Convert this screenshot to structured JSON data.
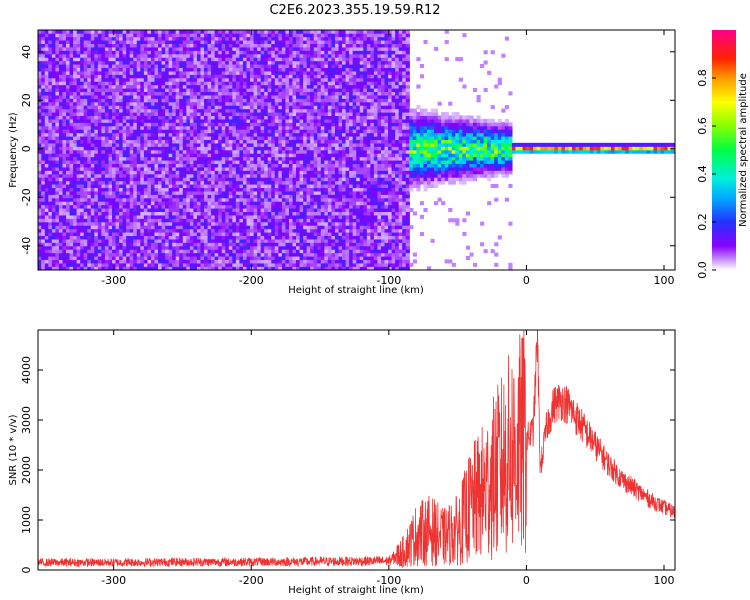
{
  "title": "C2E6.2023.355.19.59.R12",
  "chart_data": [
    {
      "type": "heatmap",
      "xlabel": "Height of straight line (km)",
      "ylabel": "Frequency (Hz)",
      "xlim": [
        -355,
        108
      ],
      "ylim": [
        -50,
        49
      ],
      "xticks": [
        -300,
        -200,
        -100,
        0,
        100
      ],
      "yticks": [
        -40,
        -20,
        0,
        20,
        40
      ],
      "colorbar": {
        "label": "Normalized spectral amplitude",
        "range": [
          0,
          1
        ],
        "ticks": [
          0.0,
          0.2,
          0.4,
          0.6,
          0.8
        ],
        "tick_labels": [
          "0.0",
          "0.2",
          "0.4",
          "0.6",
          "0.8"
        ]
      },
      "regions": [
        {
          "x_range": [
            -355,
            -85
          ],
          "description_value": "broadband noise, amplitude ~0.05-0.25 across all frequencies"
        },
        {
          "x_range": [
            -85,
            -10
          ],
          "center_freq": 0,
          "half_width_hz": 8,
          "peak_amplitude": 0.6
        },
        {
          "x_range": [
            -10,
            108
          ],
          "center_freq": 0,
          "half_width_hz": 1.5,
          "peak_amplitude": 0.9
        }
      ],
      "grid": false
    },
    {
      "type": "line",
      "xlabel": "Height of straight line (km)",
      "ylabel": "SNR (10 * v/v)",
      "xlim": [
        -355,
        108
      ],
      "ylim": [
        0,
        4800
      ],
      "xticks": [
        -300,
        -200,
        -100,
        0,
        100
      ],
      "yticks": [
        0,
        1000,
        2000,
        3000,
        4000
      ],
      "color": "#ee3333",
      "series": [
        {
          "x": [
            -355,
            -300,
            -250,
            -200,
            -150,
            -100,
            -90,
            -80,
            -70,
            -60,
            -50,
            -40,
            -30,
            -20,
            -10,
            0,
            5,
            8,
            10,
            15,
            20,
            25,
            30,
            40,
            50,
            60,
            70,
            80,
            90,
            100,
            108
          ],
          "values": [
            150,
            150,
            160,
            160,
            170,
            180,
            350,
            700,
            800,
            650,
            800,
            1300,
            1600,
            2000,
            2400,
            2600,
            2800,
            4700,
            2000,
            2900,
            3300,
            3400,
            3300,
            2900,
            2500,
            2100,
            1800,
            1600,
            1400,
            1250,
            1150
          ]
        }
      ],
      "grid": false
    }
  ]
}
